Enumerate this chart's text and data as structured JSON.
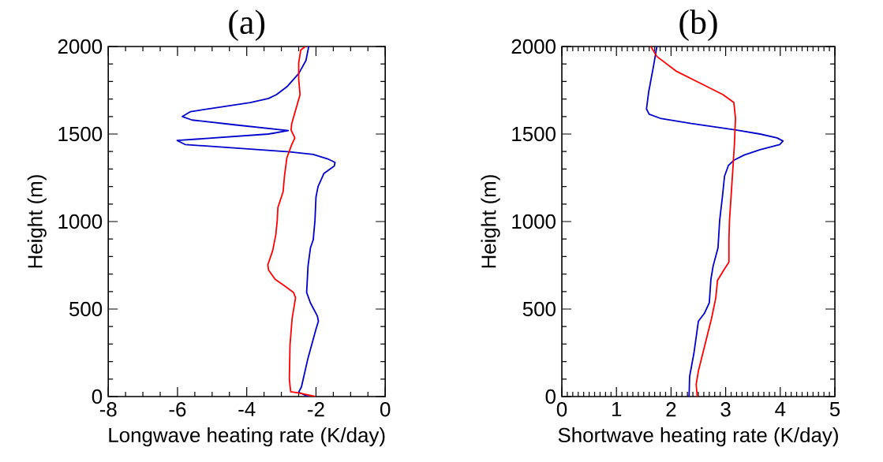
{
  "chart_data": [
    {
      "type": "line",
      "title": "(a)",
      "xlabel": "Longwave heating rate (K/day)",
      "ylabel": "Height (m)",
      "xlim": [
        -8,
        0
      ],
      "xticks": [
        -8,
        -6,
        -4,
        -2,
        0
      ],
      "ylim": [
        0,
        2000
      ],
      "yticks": [
        0,
        500,
        1000,
        1500,
        2000
      ],
      "series": [
        {
          "color": "#0000cc",
          "x": [
            -2.21,
            -2.29,
            -2.5,
            -2.84,
            -3.14,
            -3.37,
            -3.9,
            -5.62,
            -5.86,
            -5.58,
            -4.36,
            -2.8,
            -3.37,
            -6.01,
            -5.78,
            -2.76,
            -2.08,
            -1.66,
            -1.45,
            -1.47,
            -1.77,
            -1.94,
            -2.0,
            -2.03,
            -2.08,
            -2.16,
            -2.23,
            -2.27,
            -2.16,
            -1.96,
            -1.93,
            -2.0,
            -2.23,
            -2.42,
            -2.5,
            -2.23
          ],
          "values": [
            2000,
            1920,
            1845,
            1770,
            1725,
            1703,
            1680,
            1628,
            1600,
            1580,
            1553,
            1520,
            1500,
            1463,
            1440,
            1398,
            1383,
            1358,
            1338,
            1318,
            1275,
            1200,
            1140,
            1005,
            895,
            850,
            745,
            595,
            535,
            460,
            430,
            385,
            220,
            55,
            25,
            0
          ]
        },
        {
          "color": "#ff0000",
          "x": [
            -2.31,
            -2.44,
            -2.5,
            -2.5,
            -2.46,
            -2.57,
            -2.7,
            -2.72,
            -2.61,
            -2.7,
            -2.84,
            -2.91,
            -2.95,
            -3.1,
            -3.12,
            -3.16,
            -3.25,
            -3.39,
            -3.37,
            -3.18,
            -2.91,
            -2.65,
            -2.59,
            -2.69,
            -2.75,
            -2.77,
            -2.73,
            -2.5,
            -2.02
          ],
          "values": [
            2000,
            1980,
            1905,
            1815,
            1725,
            1650,
            1560,
            1523,
            1478,
            1440,
            1365,
            1260,
            1170,
            1080,
            1005,
            925,
            835,
            753,
            723,
            670,
            633,
            595,
            565,
            445,
            295,
            100,
            28,
            21,
            0
          ]
        }
      ]
    },
    {
      "type": "line",
      "title": "(b)",
      "xlabel": "Shortwave heating rate (K/day)",
      "ylabel": "Height (m)",
      "xlim": [
        0,
        5
      ],
      "xticks": [
        0,
        1,
        2,
        3,
        4,
        5
      ],
      "ylim": [
        0,
        2000
      ],
      "yticks": [
        0,
        500,
        1000,
        1500,
        2000
      ],
      "series": [
        {
          "color": "#0000cc",
          "x": [
            1.74,
            1.68,
            1.59,
            1.55,
            1.6,
            1.8,
            2.37,
            3.19,
            3.63,
            3.94,
            4.05,
            3.99,
            3.63,
            3.34,
            3.15,
            3.05,
            2.98,
            2.94,
            2.89,
            2.86,
            2.77,
            2.73,
            2.7,
            2.61,
            2.5,
            2.48,
            2.42,
            2.34,
            2.33
          ],
          "values": [
            2000,
            1890,
            1740,
            1643,
            1613,
            1590,
            1560,
            1523,
            1500,
            1478,
            1460,
            1440,
            1410,
            1380,
            1350,
            1320,
            1260,
            1140,
            1005,
            850,
            745,
            670,
            535,
            475,
            430,
            385,
            250,
            115,
            0
          ]
        },
        {
          "color": "#ff0000",
          "x": [
            1.63,
            1.74,
            2.09,
            2.57,
            2.95,
            3.15,
            3.18,
            3.16,
            3.13,
            3.07,
            3.06,
            3.06,
            2.98,
            2.85,
            2.82,
            2.74,
            2.62,
            2.5,
            2.46,
            2.48
          ],
          "values": [
            2000,
            1943,
            1860,
            1785,
            1725,
            1680,
            1590,
            1440,
            1290,
            1005,
            895,
            768,
            730,
            663,
            565,
            445,
            295,
            145,
            70,
            0
          ]
        }
      ]
    }
  ]
}
